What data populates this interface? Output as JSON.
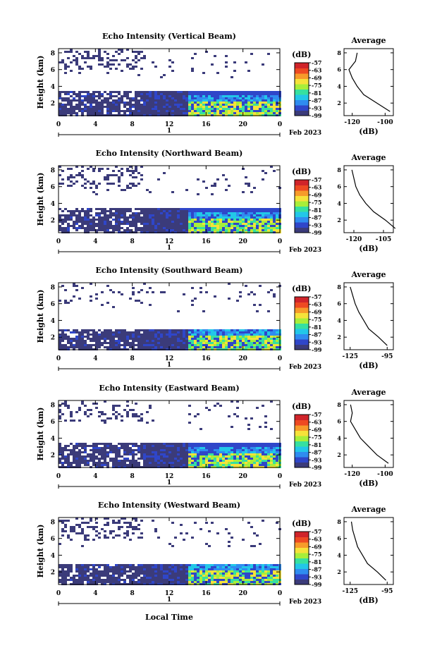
{
  "colorbar": {
    "unit_label": "(dB)",
    "ticks": [
      "-57",
      "-63",
      "-69",
      "-75",
      "-81",
      "-87",
      "-93",
      "-99"
    ],
    "colors": [
      "#3b3b7a",
      "#2f46c9",
      "#2f8cf0",
      "#22c7e8",
      "#36e0a0",
      "#a8ee3a",
      "#f6e23a",
      "#f79b2a",
      "#ee4a22",
      "#d0242a"
    ]
  },
  "xaxis": {
    "ticks": [
      "0",
      "4",
      "8",
      "12",
      "16",
      "20",
      "0"
    ],
    "day_label": "1",
    "date_label": "Feb 2023",
    "title": "Local Time"
  },
  "panels": [
    {
      "title": "Echo Intensity (Vertical Beam)",
      "ylabel": "Height (km)",
      "yticks": [
        "2",
        "4",
        "6",
        "8"
      ],
      "profile_ticks": [
        "-120",
        "-100"
      ]
    },
    {
      "title": "Echo Intensity (Northward Beam)",
      "ylabel": "Height (km)",
      "yticks": [
        "2",
        "4",
        "6",
        "8"
      ],
      "profile_ticks": [
        "-120",
        "-105"
      ]
    },
    {
      "title": "Echo Intensity (Southward Beam)",
      "ylabel": "Height (km)",
      "yticks": [
        "2",
        "4",
        "6",
        "8"
      ],
      "profile_ticks": [
        "-125",
        "-95"
      ]
    },
    {
      "title": "Echo Intensity (Eastward Beam)",
      "ylabel": "Height (km)",
      "yticks": [
        "2",
        "4",
        "6",
        "8"
      ],
      "profile_ticks": [
        "-120",
        "-100"
      ]
    },
    {
      "title": "Echo Intensity (Westward Beam)",
      "ylabel": "Height (km)",
      "yticks": [
        "2",
        "4",
        "6",
        "8"
      ],
      "profile_ticks": [
        "-125",
        "-95"
      ]
    }
  ],
  "profile": {
    "title": "Average",
    "xlabel": "(dB)",
    "yticks": [
      "2",
      "4",
      "6",
      "8"
    ]
  },
  "chart_data": {
    "type": "heatmap",
    "x_unit": "hours local time",
    "xlim": [
      0,
      24
    ],
    "ylim": [
      0.5,
      8.5
    ],
    "zlim": [
      -99,
      -57
    ],
    "profiles": [
      {
        "name": "Vertical Beam",
        "height": [
          1,
          2,
          3,
          4,
          5,
          6,
          7,
          8
        ],
        "value": [
          -97,
          -105,
          -113,
          -117,
          -120,
          -122,
          -118,
          -117
        ]
      },
      {
        "name": "Northward Beam",
        "height": [
          1,
          2,
          3,
          4,
          5,
          6,
          7,
          8
        ],
        "value": [
          -99,
          -104,
          -110,
          -114,
          -117,
          -119,
          -120,
          -121
        ]
      },
      {
        "name": "Southward Beam",
        "height": [
          1,
          2,
          3,
          4,
          5,
          6,
          7,
          8
        ],
        "value": [
          -95,
          -102,
          -110,
          -114,
          -118,
          -121,
          -123,
          -125
        ]
      },
      {
        "name": "Eastward Beam",
        "height": [
          1,
          2,
          3,
          4,
          5,
          6,
          7,
          8
        ],
        "value": [
          -98,
          -105,
          -110,
          -115,
          -118,
          -121,
          -120,
          -121
        ]
      },
      {
        "name": "Westward Beam",
        "height": [
          1,
          2,
          3,
          4,
          5,
          6,
          7,
          8
        ],
        "value": [
          -96,
          -103,
          -111,
          -115,
          -119,
          -121,
          -123,
          -124
        ]
      }
    ]
  }
}
